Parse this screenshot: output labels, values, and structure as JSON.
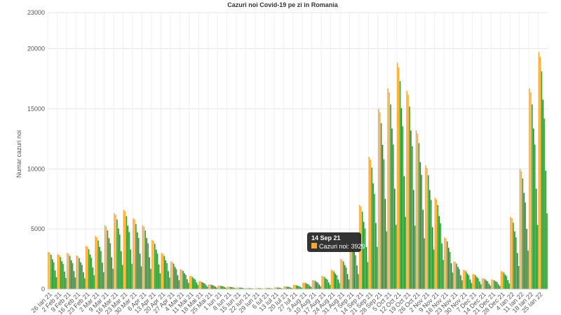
{
  "chart_data": {
    "type": "bar",
    "title": "Cazuri noi Covid-19 pe zi in Romania",
    "ylabel": "Numar cazuri noi",
    "xlabel": "",
    "ylim": [
      0,
      23000
    ],
    "y_ticks": [
      0,
      5000,
      10000,
      15000,
      20000,
      23000
    ],
    "x_tick_labels": [
      "26 Ian 21",
      "2 Feb 21",
      "9 Feb 21",
      "16 Feb 21",
      "23 Feb 21",
      "2 Mar 21",
      "9 Mar 21",
      "16 Mar 21",
      "23 Mar 21",
      "30 Mar 21",
      "6 Apr 21",
      "13 Apr 21",
      "20 Apr 21",
      "27 Apr 21",
      "4 Mai 21",
      "11 Mai 21",
      "18 Mai 21",
      "25 Mai 21",
      "1 Iun 21",
      "8 Iun 21",
      "15 Iun 21",
      "22 Iun 21",
      "29 Iun 21",
      "6 Iul 21",
      "13 Iul 21",
      "20 Iul 21",
      "27 Iul 21",
      "3 Aug 21",
      "10 Aug 21",
      "17 Aug 21",
      "24 Aug 21",
      "31 Aug 21",
      "7 Sep 21",
      "14 Sep 21",
      "21 Sep 21",
      "28 Sep 21",
      "5 Oct 21",
      "12 Oct 21",
      "19 Oct 21",
      "26 Oct 21",
      "2 Nov 21",
      "9 Nov 21",
      "16 Nov 21",
      "23 Nov 21",
      "30 Nov 21",
      "7 Dec 21",
      "14 Dec 21",
      "21 Dec 21",
      "28 Dec 21",
      "4 Ian 22",
      "11 Ian 22",
      "18 Ian 22",
      "25 Ian 22"
    ],
    "grid": true,
    "series": [
      {
        "name": "Cazuri noi",
        "weekly_peaks": [
          3100,
          2900,
          3000,
          2800,
          3600,
          4400,
          5300,
          6300,
          6600,
          5900,
          5300,
          4100,
          3000,
          2300,
          1650,
          1100,
          650,
          400,
          300,
          200,
          140,
          90,
          80,
          100,
          150,
          230,
          350,
          550,
          750,
          1100,
          1600,
          2500,
          3929,
          7000,
          11000,
          15000,
          16700,
          18800,
          16500,
          13200,
          10300,
          7600,
          4300,
          2300,
          1600,
          1250,
          900,
          800,
          1500,
          6000,
          10000,
          16700,
          19700
        ],
        "weekday_shape": [
          1.0,
          0.98,
          0.92,
          0.8,
          0.72,
          0.5,
          0.32
        ],
        "colors": [
          "#f7a830",
          "#2a9a2a",
          "#1e7d1e"
        ]
      }
    ],
    "tooltip": {
      "date": "14 Sep 21",
      "series_label": "Cazuri noi",
      "value": 3929,
      "color": "#f7a830"
    }
  }
}
